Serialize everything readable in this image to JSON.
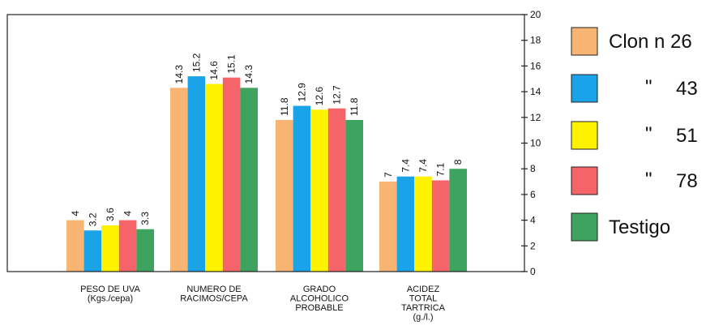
{
  "chart_data": {
    "type": "bar",
    "title": "",
    "xlabel": "",
    "ylabel": "",
    "ylim": [
      0,
      20
    ],
    "yticks": [
      0,
      2,
      4,
      6,
      8,
      10,
      12,
      14,
      16,
      18,
      20
    ],
    "y_axis_position": "right",
    "grid": false,
    "legend_position": "right",
    "categories": [
      [
        "PESO DE UVA",
        "(Kgs./cepa)"
      ],
      [
        "NUMERO DE",
        "RACIMOS/CEPA"
      ],
      [
        "GRADO",
        "ALCOHOLICO",
        "PROBABLE"
      ],
      [
        "ACIDEZ",
        "TOTAL",
        "TARTRICA",
        "(g./l.)"
      ]
    ],
    "series": [
      {
        "name": "Clon n 26",
        "legend_prefix": "",
        "color": "#f7b472",
        "values": [
          4,
          14.3,
          11.8,
          7
        ]
      },
      {
        "name": "43",
        "legend_prefix": "\"",
        "color": "#1aa3e8",
        "values": [
          3.2,
          15.2,
          12.9,
          7.4
        ]
      },
      {
        "name": "51",
        "legend_prefix": "\"",
        "color": "#fff200",
        "values": [
          3.6,
          14.6,
          12.6,
          7.4
        ]
      },
      {
        "name": "78",
        "legend_prefix": "\"",
        "color": "#f56469",
        "values": [
          4,
          15.1,
          12.7,
          7.1
        ]
      },
      {
        "name": "Testigo",
        "legend_prefix": "",
        "color": "#3ea35e",
        "values": [
          3.3,
          14.3,
          11.8,
          8
        ]
      }
    ]
  }
}
